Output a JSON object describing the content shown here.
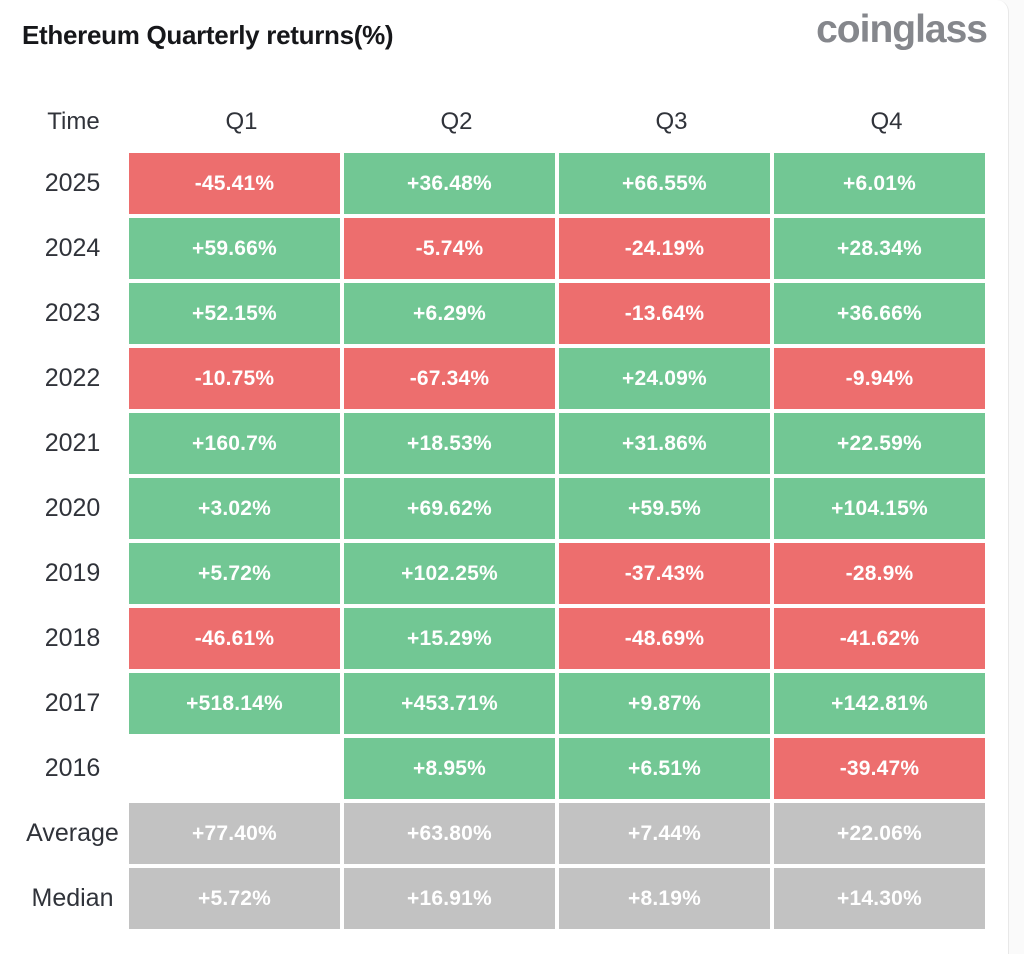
{
  "header": {
    "title": "Ethereum Quarterly returns(%)",
    "logo": "coinglass"
  },
  "colors": {
    "positive": "#72c794",
    "negative": "#ed6e6e",
    "neutral": "#c2c2c2",
    "label_text": "#30333a",
    "cell_text": "#ffffff",
    "page_bg": "#ffffff"
  },
  "table": {
    "columns": [
      "Time",
      "Q1",
      "Q2",
      "Q3",
      "Q4"
    ],
    "rows": [
      {
        "label": "2025",
        "cells": [
          {
            "text": "-45.41%",
            "tone": "negative"
          },
          {
            "text": "+36.48%",
            "tone": "positive"
          },
          {
            "text": "+66.55%",
            "tone": "positive"
          },
          {
            "text": "+6.01%",
            "tone": "positive"
          }
        ]
      },
      {
        "label": "2024",
        "cells": [
          {
            "text": "+59.66%",
            "tone": "positive"
          },
          {
            "text": "-5.74%",
            "tone": "negative"
          },
          {
            "text": "-24.19%",
            "tone": "negative"
          },
          {
            "text": "+28.34%",
            "tone": "positive"
          }
        ]
      },
      {
        "label": "2023",
        "cells": [
          {
            "text": "+52.15%",
            "tone": "positive"
          },
          {
            "text": "+6.29%",
            "tone": "positive"
          },
          {
            "text": "-13.64%",
            "tone": "negative"
          },
          {
            "text": "+36.66%",
            "tone": "positive"
          }
        ]
      },
      {
        "label": "2022",
        "cells": [
          {
            "text": "-10.75%",
            "tone": "negative"
          },
          {
            "text": "-67.34%",
            "tone": "negative"
          },
          {
            "text": "+24.09%",
            "tone": "positive"
          },
          {
            "text": "-9.94%",
            "tone": "negative"
          }
        ]
      },
      {
        "label": "2021",
        "cells": [
          {
            "text": "+160.7%",
            "tone": "positive"
          },
          {
            "text": "+18.53%",
            "tone": "positive"
          },
          {
            "text": "+31.86%",
            "tone": "positive"
          },
          {
            "text": "+22.59%",
            "tone": "positive"
          }
        ]
      },
      {
        "label": "2020",
        "cells": [
          {
            "text": "+3.02%",
            "tone": "positive"
          },
          {
            "text": "+69.62%",
            "tone": "positive"
          },
          {
            "text": "+59.5%",
            "tone": "positive"
          },
          {
            "text": "+104.15%",
            "tone": "positive"
          }
        ]
      },
      {
        "label": "2019",
        "cells": [
          {
            "text": "+5.72%",
            "tone": "positive"
          },
          {
            "text": "+102.25%",
            "tone": "positive"
          },
          {
            "text": "-37.43%",
            "tone": "negative"
          },
          {
            "text": "-28.9%",
            "tone": "negative"
          }
        ]
      },
      {
        "label": "2018",
        "cells": [
          {
            "text": "-46.61%",
            "tone": "negative"
          },
          {
            "text": "+15.29%",
            "tone": "positive"
          },
          {
            "text": "-48.69%",
            "tone": "negative"
          },
          {
            "text": "-41.62%",
            "tone": "negative"
          }
        ]
      },
      {
        "label": "2017",
        "cells": [
          {
            "text": "+518.14%",
            "tone": "positive"
          },
          {
            "text": "+453.71%",
            "tone": "positive"
          },
          {
            "text": "+9.87%",
            "tone": "positive"
          },
          {
            "text": "+142.81%",
            "tone": "positive"
          }
        ]
      },
      {
        "label": "2016",
        "cells": [
          {
            "text": "",
            "tone": "empty"
          },
          {
            "text": "+8.95%",
            "tone": "positive"
          },
          {
            "text": "+6.51%",
            "tone": "positive"
          },
          {
            "text": "-39.47%",
            "tone": "negative"
          }
        ]
      },
      {
        "label": "Average",
        "cells": [
          {
            "text": "+77.40%",
            "tone": "neutral"
          },
          {
            "text": "+63.80%",
            "tone": "neutral"
          },
          {
            "text": "+7.44%",
            "tone": "neutral"
          },
          {
            "text": "+22.06%",
            "tone": "neutral"
          }
        ]
      },
      {
        "label": "Median",
        "cells": [
          {
            "text": "+5.72%",
            "tone": "neutral"
          },
          {
            "text": "+16.91%",
            "tone": "neutral"
          },
          {
            "text": "+8.19%",
            "tone": "neutral"
          },
          {
            "text": "+14.30%",
            "tone": "neutral"
          }
        ]
      }
    ]
  },
  "chart_data": {
    "type": "heatmap",
    "title": "Ethereum Quarterly returns(%)",
    "columns": [
      "Q1",
      "Q2",
      "Q3",
      "Q4"
    ],
    "row_labels": [
      "2025",
      "2024",
      "2023",
      "2022",
      "2021",
      "2020",
      "2019",
      "2018",
      "2017",
      "2016",
      "Average",
      "Median"
    ],
    "values_pct": {
      "2025": [
        -45.41,
        36.48,
        66.55,
        6.01
      ],
      "2024": [
        59.66,
        -5.74,
        -24.19,
        28.34
      ],
      "2023": [
        52.15,
        6.29,
        -13.64,
        36.66
      ],
      "2022": [
        -10.75,
        -67.34,
        24.09,
        -9.94
      ],
      "2021": [
        160.7,
        18.53,
        31.86,
        22.59
      ],
      "2020": [
        3.02,
        69.62,
        59.5,
        104.15
      ],
      "2019": [
        5.72,
        102.25,
        -37.43,
        -28.9
      ],
      "2018": [
        -46.61,
        15.29,
        -48.69,
        -41.62
      ],
      "2017": [
        518.14,
        453.71,
        9.87,
        142.81
      ],
      "2016": [
        null,
        8.95,
        6.51,
        -39.47
      ],
      "Average": [
        77.4,
        63.8,
        7.44,
        22.06
      ],
      "Median": [
        5.72,
        16.91,
        8.19,
        14.3
      ]
    },
    "legend": "green = positive quarter, red = negative quarter, gray = aggregate rows (Average/Median), blank = no data"
  }
}
